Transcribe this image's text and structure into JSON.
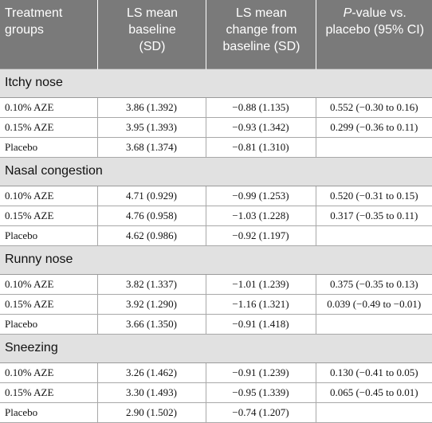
{
  "headers": {
    "col1": [
      "Treatment",
      "groups"
    ],
    "col2": [
      "LS mean",
      "baseline",
      "(SD)"
    ],
    "col3": [
      "LS mean",
      "change from",
      "baseline (SD)"
    ],
    "col4_italic": "P",
    "col4_rest": "-value vs.",
    "col4_line2": "placebo (95% CI)"
  },
  "sections": [
    {
      "title": "Itchy nose",
      "rows": [
        {
          "group": "0.10% AZE",
          "baseline": "3.86 (1.392)",
          "change": "−0.88 (1.135)",
          "pvalue": "0.552 (−0.30 to 0.16)"
        },
        {
          "group": "0.15% AZE",
          "baseline": "3.95 (1.393)",
          "change": "−0.93 (1.342)",
          "pvalue": "0.299 (−0.36 to 0.11)"
        },
        {
          "group": "Placebo",
          "baseline": "3.68 (1.374)",
          "change": "−0.81 (1.310)",
          "pvalue": ""
        }
      ]
    },
    {
      "title": "Nasal congestion",
      "rows": [
        {
          "group": "0.10% AZE",
          "baseline": "4.71 (0.929)",
          "change": "−0.99 (1.253)",
          "pvalue": "0.520 (−0.31 to 0.15)"
        },
        {
          "group": "0.15% AZE",
          "baseline": "4.76 (0.958)",
          "change": "−1.03 (1.228)",
          "pvalue": "0.317 (−0.35 to 0.11)"
        },
        {
          "group": "Placebo",
          "baseline": "4.62 (0.986)",
          "change": "−0.92 (1.197)",
          "pvalue": ""
        }
      ]
    },
    {
      "title": "Runny nose",
      "rows": [
        {
          "group": "0.10% AZE",
          "baseline": "3.82 (1.337)",
          "change": "−1.01 (1.239)",
          "pvalue": "0.375 (−0.35 to 0.13)"
        },
        {
          "group": "0.15% AZE",
          "baseline": "3.92 (1.290)",
          "change": "−1.16 (1.321)",
          "pvalue": "0.039 (−0.49 to −0.01)"
        },
        {
          "group": "Placebo",
          "baseline": "3.66 (1.350)",
          "change": "−0.91 (1.418)",
          "pvalue": ""
        }
      ]
    },
    {
      "title": "Sneezing",
      "rows": [
        {
          "group": "0.10% AZE",
          "baseline": "3.26 (1.462)",
          "change": "−0.91 (1.239)",
          "pvalue": "0.130 (−0.41 to 0.05)"
        },
        {
          "group": "0.15% AZE",
          "baseline": "3.30 (1.493)",
          "change": "−0.95 (1.339)",
          "pvalue": "0.065 (−0.45 to 0.01)"
        },
        {
          "group": "Placebo",
          "baseline": "2.90 (1.502)",
          "change": "−0.74 (1.207)",
          "pvalue": ""
        }
      ]
    }
  ]
}
